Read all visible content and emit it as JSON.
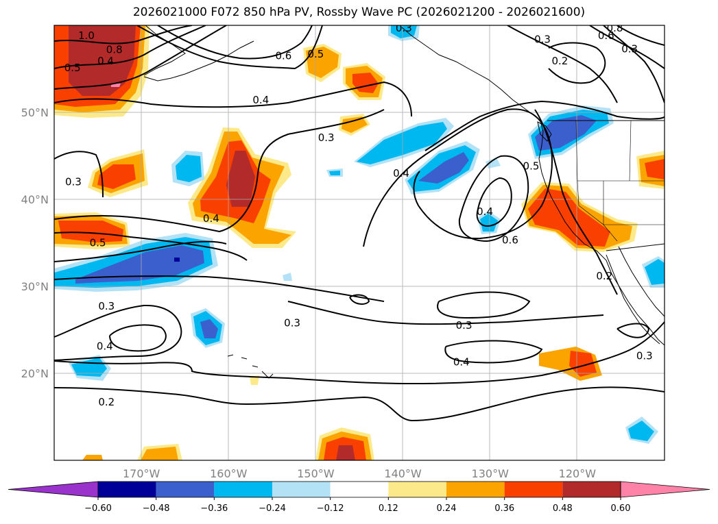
{
  "title": "2026021000 F072 850 hPa PV, Rossby Wave PC (2026021200 - 2026021600)",
  "map": {
    "projection": "PlateCarree",
    "lon_range": [
      -180,
      -110
    ],
    "lat_range": [
      10,
      60
    ],
    "lat_ticks": [
      {
        "value": 50,
        "label": "50°N"
      },
      {
        "value": 40,
        "label": "40°N"
      },
      {
        "value": 30,
        "label": "30°N"
      },
      {
        "value": 20,
        "label": "20°N"
      }
    ],
    "lon_ticks": [
      {
        "value": -170,
        "label": "170°W"
      },
      {
        "value": -160,
        "label": "160°W"
      },
      {
        "value": -150,
        "label": "150°W"
      },
      {
        "value": -140,
        "label": "140°W"
      },
      {
        "value": -130,
        "label": "130°W"
      },
      {
        "value": -120,
        "label": "120°W"
      }
    ],
    "gridlines": true,
    "coastlines": true
  },
  "contour_labels": [
    {
      "text": "1.0",
      "lon": -176.3,
      "lat": 58.8
    },
    {
      "text": "0.8",
      "lon": -173.1,
      "lat": 57.2
    },
    {
      "text": "0.6",
      "lon": -153.7,
      "lat": 56.5
    },
    {
      "text": "0.5",
      "lon": -150.0,
      "lat": 56.7
    },
    {
      "text": "0.5",
      "lon": -177.9,
      "lat": 55.1
    },
    {
      "text": "0.4",
      "lon": -174.1,
      "lat": 55.9
    },
    {
      "text": "0.4",
      "lon": -156.3,
      "lat": 51.4
    },
    {
      "text": "0.3",
      "lon": -148.8,
      "lat": 47.1
    },
    {
      "text": "0.3",
      "lon": -177.8,
      "lat": 42.0
    },
    {
      "text": "0.4",
      "lon": -162.0,
      "lat": 37.8
    },
    {
      "text": "0.5",
      "lon": -175.0,
      "lat": 35.0
    },
    {
      "text": "0.3",
      "lon": -174.0,
      "lat": 27.7
    },
    {
      "text": "0.4",
      "lon": -174.2,
      "lat": 23.1
    },
    {
      "text": "0.2",
      "lon": -174.0,
      "lat": 16.7
    },
    {
      "text": "0.3",
      "lon": -152.7,
      "lat": 25.8
    },
    {
      "text": "0.3",
      "lon": -133.0,
      "lat": 25.5
    },
    {
      "text": "0.4",
      "lon": -133.3,
      "lat": 21.3
    },
    {
      "text": "0.4",
      "lon": -140.2,
      "lat": 43.0
    },
    {
      "text": "0.4",
      "lon": -130.6,
      "lat": 38.6
    },
    {
      "text": "0.6",
      "lon": -127.7,
      "lat": 35.3
    },
    {
      "text": "0.3",
      "lon": -139.9,
      "lat": 59.7
    },
    {
      "text": "0.3",
      "lon": -124.0,
      "lat": 58.4
    },
    {
      "text": "0.2",
      "lon": -122.0,
      "lat": 55.9
    },
    {
      "text": "0.8",
      "lon": -115.7,
      "lat": 59.7
    },
    {
      "text": "0.6",
      "lon": -116.7,
      "lat": 58.8
    },
    {
      "text": "0.3",
      "lon": -114.0,
      "lat": 57.3
    },
    {
      "text": "0.5",
      "lon": -125.3,
      "lat": 43.8
    },
    {
      "text": "0.2",
      "lon": -116.9,
      "lat": 31.2
    },
    {
      "text": "0.3",
      "lon": -112.3,
      "lat": 22.0
    }
  ],
  "colorbar": {
    "orientation": "horizontal",
    "extend": "both",
    "levels": [
      -0.72,
      -0.6,
      -0.48,
      -0.36,
      -0.24,
      -0.12,
      0.12,
      0.24,
      0.36,
      0.48,
      0.6,
      0.72
    ],
    "colors": [
      "#9933cc",
      "#000099",
      "#3b5fcc",
      "#00b8f0",
      "#b3e2f7",
      "#ffffff",
      "#fce98a",
      "#fba400",
      "#fa4000",
      "#b22a2a",
      "#ff82a8"
    ],
    "tick_labels": [
      "−0.60",
      "−0.48",
      "−0.36",
      "−0.24",
      "−0.12",
      "0.12",
      "0.24",
      "0.36",
      "0.48",
      "0.60"
    ]
  }
}
